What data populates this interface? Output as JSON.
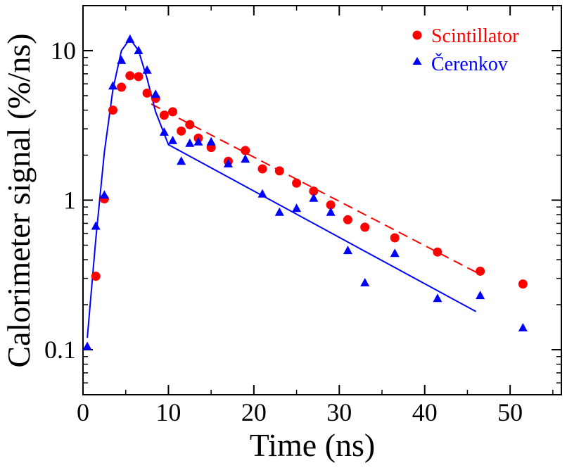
{
  "chart_data": {
    "type": "scatter",
    "xlabel": "Time (ns)",
    "ylabel": "Calorimeter signal (%/ns)",
    "xlim": [
      0,
      56
    ],
    "ylim": [
      0.05,
      20
    ],
    "yscale": "log",
    "xticks": [
      0,
      10,
      20,
      30,
      40,
      50
    ],
    "xtick_labels": [
      "0",
      "10",
      "20",
      "30",
      "40",
      "50"
    ],
    "yticks": [
      0.1,
      1,
      10
    ],
    "ytick_labels": [
      "0.1",
      "1",
      "10"
    ],
    "legend_position": "top-right",
    "series": [
      {
        "name": "Scintillator",
        "marker": "circle",
        "color": "#ff0000",
        "x": [
          1.5,
          2.5,
          3.5,
          4.5,
          5.5,
          6.5,
          7.5,
          8.5,
          9.5,
          10.5,
          11.5,
          12.5,
          13.5,
          15,
          17,
          19,
          21,
          23,
          25,
          27,
          29,
          31,
          33,
          36.5,
          41.5,
          46.5,
          51.5
        ],
        "y": [
          0.31,
          1.02,
          4.0,
          5.7,
          6.8,
          6.7,
          5.2,
          4.8,
          3.7,
          3.9,
          2.9,
          3.2,
          2.6,
          2.25,
          1.82,
          2.15,
          1.62,
          1.57,
          1.3,
          1.15,
          0.93,
          0.74,
          0.66,
          0.56,
          0.45,
          0.335,
          0.275
        ]
      },
      {
        "name": "Čerenkov",
        "marker": "triangle",
        "color": "#0000ff",
        "x": [
          0.5,
          1.5,
          2.5,
          3.5,
          4.5,
          5.5,
          6.5,
          7.5,
          8.5,
          9.5,
          10.5,
          11.5,
          12.5,
          13.5,
          15,
          17,
          19,
          21,
          23,
          25,
          27,
          29,
          31,
          33,
          36.5,
          41.5,
          46.5,
          51.5
        ],
        "y": [
          0.105,
          0.67,
          1.08,
          5.8,
          8.6,
          11.9,
          10.0,
          7.4,
          5.1,
          2.85,
          2.5,
          1.82,
          2.4,
          2.45,
          2.45,
          1.75,
          1.88,
          1.1,
          0.83,
          0.88,
          1.03,
          0.83,
          0.46,
          0.28,
          0.44,
          0.22,
          0.23,
          0.14
        ]
      }
    ],
    "fits": [
      {
        "series": "Scintillator",
        "style": "dashed",
        "color": "#ff0000",
        "x": [
          8,
          46
        ],
        "y": [
          4.4,
          0.33
        ]
      },
      {
        "series": "Čerenkov",
        "style": "solid",
        "color": "#0000ff",
        "x": [
          0.5,
          1.5,
          2.5,
          3.5,
          4.5,
          5.5,
          6.5,
          7.5,
          8.5,
          10,
          46
        ],
        "y": [
          0.12,
          0.55,
          2.1,
          5.5,
          10,
          12.0,
          10.0,
          6.5,
          3.9,
          2.35,
          0.18
        ]
      }
    ]
  }
}
